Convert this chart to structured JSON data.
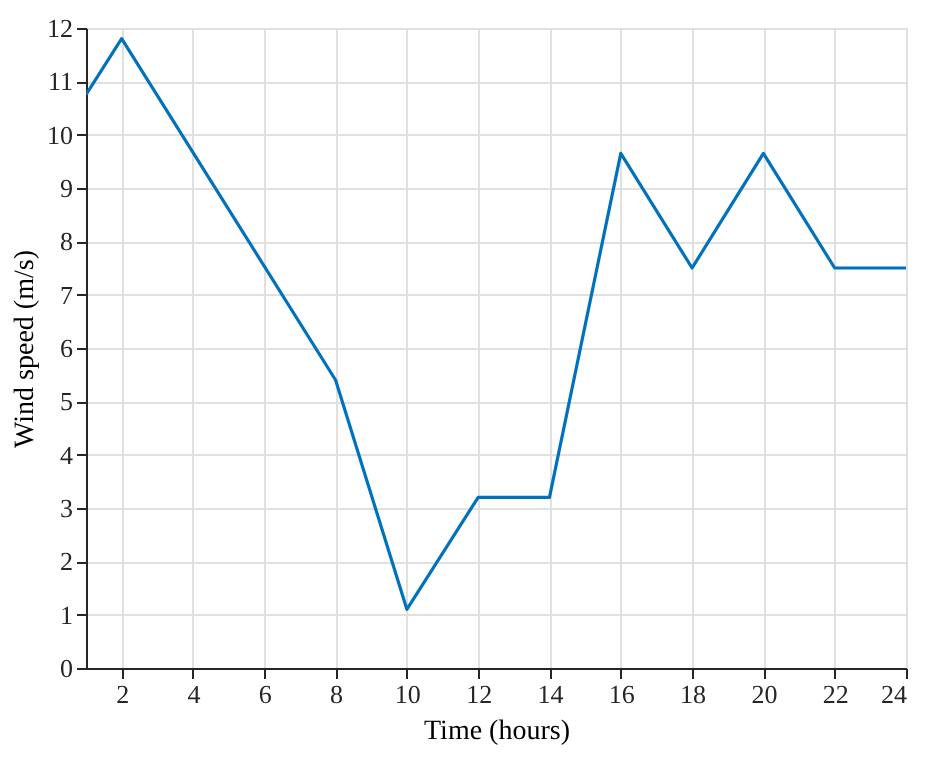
{
  "chart_data": {
    "type": "line",
    "xlabel": "Time (hours)",
    "ylabel": "Wind speed (m/s)",
    "x": [
      1,
      2,
      8,
      10,
      12,
      14,
      16,
      18,
      20,
      22,
      24
    ],
    "series": [
      {
        "color": "#0072bd",
        "values": [
          10.75,
          11.8,
          5.4,
          1.1,
          3.2,
          3.2,
          9.65,
          7.5,
          9.65,
          7.5,
          7.5
        ]
      }
    ],
    "xlim": [
      1,
      24
    ],
    "xticks": [
      2,
      4,
      6,
      8,
      10,
      12,
      14,
      16,
      18,
      20,
      22,
      24
    ],
    "ylim": [
      0,
      12
    ],
    "yticks": [
      0,
      1,
      2,
      3,
      4,
      5,
      6,
      7,
      8,
      9,
      10,
      11,
      12
    ],
    "grid": true,
    "marker": "none",
    "line_style": "solid"
  }
}
